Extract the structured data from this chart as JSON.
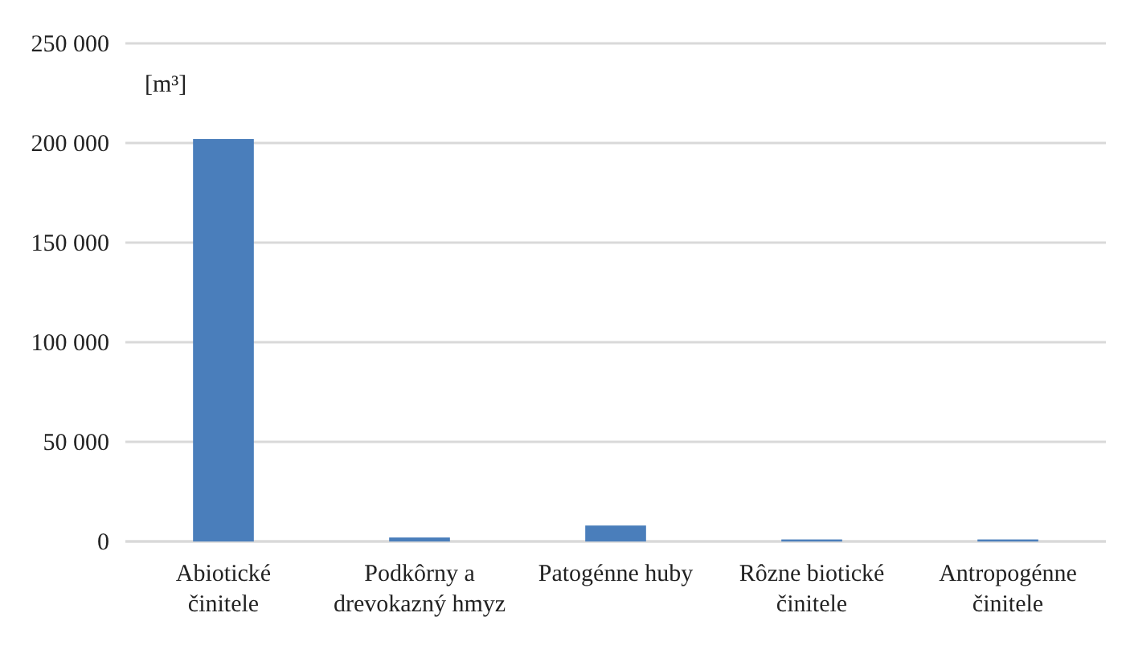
{
  "chart_data": {
    "type": "bar",
    "ylabel": "[m³]",
    "categories": [
      "Abiotické činitele",
      "Podkôrny a drevokazný hmyz",
      "Patogénne huby",
      "Rôzne biotické činitele",
      "Antropogénne činitele"
    ],
    "values": [
      202000,
      2000,
      8000,
      1000,
      1000
    ],
    "color": "#4a7ebb",
    "ylim": [
      0,
      250000
    ],
    "yticks": [
      {
        "value": 0,
        "label": "0"
      },
      {
        "value": 50000,
        "label": "50 000"
      },
      {
        "value": 100000,
        "label": "100 000"
      },
      {
        "value": 150000,
        "label": "150 000"
      },
      {
        "value": 200000,
        "label": "200 000"
      },
      {
        "value": 250000,
        "label": "250 000"
      }
    ],
    "grid": "y"
  }
}
